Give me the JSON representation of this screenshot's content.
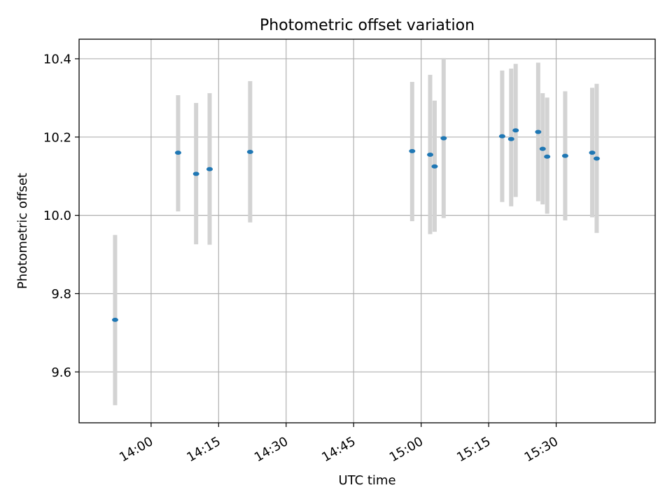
{
  "chart_data": {
    "type": "scatter",
    "title": "Photometric offset variation",
    "xlabel": "UTC time",
    "ylabel": "Photometric offset",
    "x_unit": "minutes",
    "xlim": [
      "13:44",
      "15:52"
    ],
    "ylim": [
      9.47,
      10.45
    ],
    "x_ticks": [
      "14:00",
      "14:15",
      "14:30",
      "14:45",
      "15:00",
      "15:15",
      "15:30"
    ],
    "y_ticks": [
      9.6,
      9.8,
      10.0,
      10.2,
      10.4
    ],
    "y_tick_labels": [
      "9.6",
      "9.8",
      "10.0",
      "10.2",
      "10.4"
    ],
    "grid": true,
    "series": [
      {
        "marker": "ellipse",
        "color": "#1f77b4",
        "error_color": "#d3d3d3",
        "points": [
          {
            "x": "13:52",
            "y": 9.733,
            "lo": 9.515,
            "hi": 9.95
          },
          {
            "x": "14:06",
            "y": 10.16,
            "lo": 10.01,
            "hi": 10.307
          },
          {
            "x": "14:10",
            "y": 10.106,
            "lo": 9.926,
            "hi": 10.287
          },
          {
            "x": "14:13",
            "y": 10.118,
            "lo": 9.925,
            "hi": 10.312
          },
          {
            "x": "14:22",
            "y": 10.162,
            "lo": 9.982,
            "hi": 10.343
          },
          {
            "x": "14:58",
            "y": 10.164,
            "lo": 9.985,
            "hi": 10.341
          },
          {
            "x": "15:02",
            "y": 10.155,
            "lo": 9.952,
            "hi": 10.359
          },
          {
            "x": "15:03",
            "y": 10.125,
            "lo": 9.958,
            "hi": 10.293
          },
          {
            "x": "15:05",
            "y": 10.197,
            "lo": 9.993,
            "hi": 10.402
          },
          {
            "x": "15:18",
            "y": 10.202,
            "lo": 10.034,
            "hi": 10.37
          },
          {
            "x": "15:20",
            "y": 10.195,
            "lo": 10.023,
            "hi": 10.375
          },
          {
            "x": "15:21",
            "y": 10.217,
            "lo": 10.047,
            "hi": 10.387
          },
          {
            "x": "15:26",
            "y": 10.213,
            "lo": 10.036,
            "hi": 10.39
          },
          {
            "x": "15:27",
            "y": 10.17,
            "lo": 10.028,
            "hi": 10.312
          },
          {
            "x": "15:28",
            "y": 10.15,
            "lo": 10.004,
            "hi": 10.301
          },
          {
            "x": "15:32",
            "y": 10.152,
            "lo": 9.987,
            "hi": 10.317
          },
          {
            "x": "15:38",
            "y": 10.16,
            "lo": 9.995,
            "hi": 10.326
          },
          {
            "x": "15:39",
            "y": 10.145,
            "lo": 9.955,
            "hi": 10.336
          }
        ]
      }
    ]
  }
}
